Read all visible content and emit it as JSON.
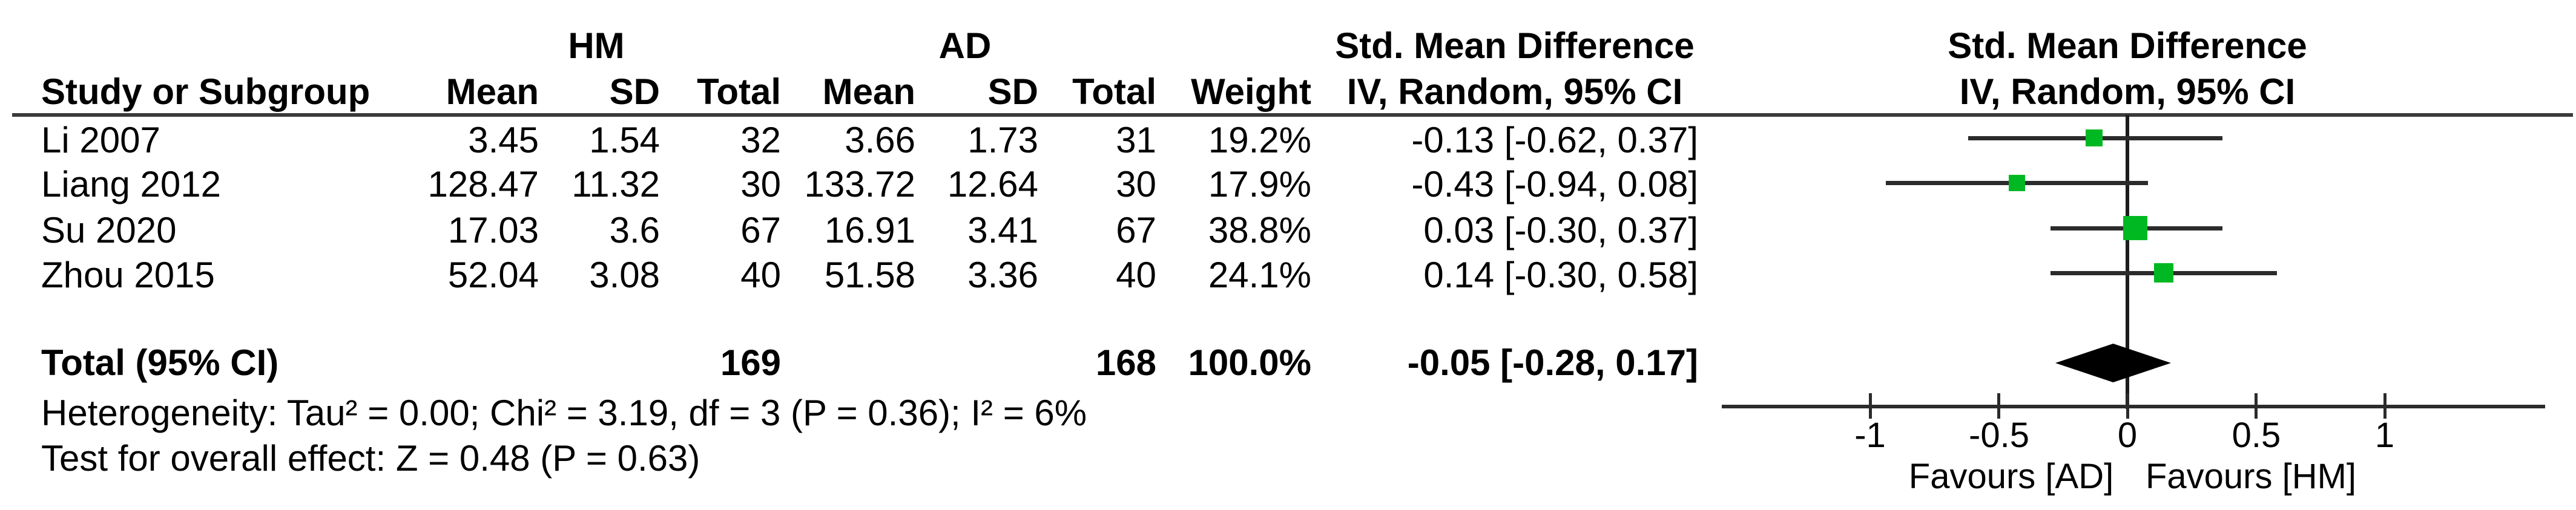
{
  "title_headers": {
    "group_hm": "HM",
    "group_ad": "AD",
    "smd_left": "Std. Mean Difference",
    "smd_right": "Std. Mean Difference",
    "method_left": "IV, Random, 95% CI",
    "method_right": "IV, Random, 95% CI"
  },
  "columns": {
    "study": "Study or Subgroup",
    "mean": "Mean",
    "sd": "SD",
    "total": "Total",
    "weight": "Weight"
  },
  "chart_data": {
    "type": "scatter",
    "subtype": "forest-plot",
    "title": "Std. Mean Difference  IV, Random, 95% CI",
    "groups": [
      "HM",
      "AD"
    ],
    "studies": [
      {
        "name": "Li 2007",
        "hm_mean": "3.45",
        "hm_sd": "1.54",
        "hm_total": "32",
        "ad_mean": "3.66",
        "ad_sd": "1.73",
        "ad_total": "31",
        "weight": "19.2%",
        "weight_value": 19.2,
        "smd": -0.13,
        "ci_low": -0.62,
        "ci_high": 0.37,
        "ci_text": "-0.13 [-0.62, 0.37]"
      },
      {
        "name": "Liang 2012",
        "hm_mean": "128.47",
        "hm_sd": "11.32",
        "hm_total": "30",
        "ad_mean": "133.72",
        "ad_sd": "12.64",
        "ad_total": "30",
        "weight": "17.9%",
        "weight_value": 17.9,
        "smd": -0.43,
        "ci_low": -0.94,
        "ci_high": 0.08,
        "ci_text": "-0.43 [-0.94, 0.08]"
      },
      {
        "name": "Su 2020",
        "hm_mean": "17.03",
        "hm_sd": "3.6",
        "hm_total": "67",
        "ad_mean": "16.91",
        "ad_sd": "3.41",
        "ad_total": "67",
        "weight": "38.8%",
        "weight_value": 38.8,
        "smd": 0.03,
        "ci_low": -0.3,
        "ci_high": 0.37,
        "ci_text": "0.03 [-0.30, 0.37]"
      },
      {
        "name": "Zhou 2015",
        "hm_mean": "52.04",
        "hm_sd": "3.08",
        "hm_total": "40",
        "ad_mean": "51.58",
        "ad_sd": "3.36",
        "ad_total": "40",
        "weight": "24.1%",
        "weight_value": 24.1,
        "smd": 0.14,
        "ci_low": -0.3,
        "ci_high": 0.58,
        "ci_text": "0.14 [-0.30, 0.58]"
      }
    ],
    "total": {
      "label": "Total (95% CI)",
      "hm_total": "169",
      "ad_total": "168",
      "weight": "100.0%",
      "smd": -0.05,
      "ci_low": -0.28,
      "ci_high": 0.17,
      "ci_text": "-0.05 [-0.28, 0.17]"
    },
    "footnotes": {
      "heterogeneity": "Heterogeneity: Tau² = 0.00; Chi² = 3.19, df = 3 (P = 0.36); I² = 6%",
      "overall_effect": "Test for overall effect: Z = 0.48 (P = 0.63)"
    },
    "axis": {
      "tick_values": [
        -1,
        -0.5,
        0,
        0.5,
        1
      ],
      "tick_labels": [
        "-1",
        "-0.5",
        "0",
        "0.5",
        "1"
      ],
      "xlim": [
        -1.6,
        1.65
      ],
      "favours_left": "Favours [AD]",
      "favours_right": "Favours [HM]"
    },
    "legend_position": "none",
    "grid": false,
    "marker_color": "#00b822",
    "diamond_color": "#000000",
    "line_color": "#2b2b2b"
  }
}
